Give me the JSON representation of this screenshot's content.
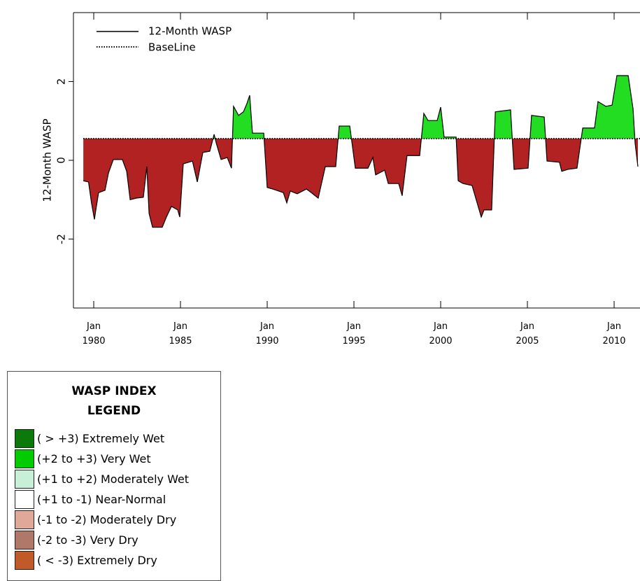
{
  "chart_data": {
    "type": "area-baseline",
    "y_label": "12-Month WASP",
    "series": [
      {
        "name": "12-Month WASP",
        "color": "#000000",
        "x": [
          1979.4,
          1979.7,
          1979.87,
          1980.04,
          1980.12,
          1980.28,
          1980.65,
          1980.85,
          1981.13,
          1981.65,
          1981.9,
          1982.1,
          1982.46,
          1982.86,
          1983.06,
          1983.19,
          1983.39,
          1983.95,
          1984.19,
          1984.48,
          1984.84,
          1984.96,
          1985.16,
          1985.69,
          1985.97,
          1986.29,
          1986.69,
          1986.94,
          1987.06,
          1987.34,
          1987.7,
          1987.94,
          1988.06,
          1988.35,
          1988.63,
          1988.83,
          1988.99,
          1989.15,
          1989.8,
          1990.0,
          1990.32,
          1990.93,
          1991.13,
          1991.33,
          1991.73,
          1992.26,
          1992.54,
          1992.94,
          1993.15,
          1993.35,
          1993.95,
          1994.15,
          1994.76,
          1995.08,
          1995.81,
          1996.09,
          1996.25,
          1996.77,
          1996.98,
          1997.58,
          1997.78,
          1998.06,
          1998.79,
          1999.03,
          1999.27,
          1999.8,
          2000.0,
          2000.2,
          2000.89,
          2001.01,
          2001.29,
          2001.81,
          2002.1,
          2002.34,
          2002.5,
          2002.94,
          2003.15,
          2004.03,
          2004.23,
          2005.04,
          2005.24,
          2005.97,
          2006.13,
          2006.85,
          2006.98,
          2007.34,
          2007.86,
          2008.19,
          2008.87,
          2009.07,
          2009.52,
          2009.88,
          2010.16,
          2010.81,
          2011.09,
          2011.21,
          2011.37
        ],
        "values": [
          -0.52,
          -0.55,
          -1.08,
          -1.5,
          -1.26,
          -0.82,
          -0.76,
          -0.32,
          0.02,
          0.02,
          -0.28,
          -1.0,
          -0.96,
          -0.94,
          -0.16,
          -1.35,
          -1.7,
          -1.7,
          -1.44,
          -1.17,
          -1.26,
          -1.44,
          -0.09,
          -0.02,
          -0.55,
          0.2,
          0.23,
          0.66,
          0.44,
          0.02,
          0.07,
          -0.2,
          1.37,
          1.14,
          1.23,
          1.44,
          1.65,
          0.69,
          0.69,
          -0.69,
          -0.73,
          -0.82,
          -1.08,
          -0.78,
          -0.85,
          -0.73,
          -0.82,
          -0.96,
          -0.55,
          -0.16,
          -0.16,
          0.87,
          0.87,
          -0.2,
          -0.2,
          0.07,
          -0.37,
          -0.25,
          -0.59,
          -0.59,
          -0.9,
          0.12,
          0.12,
          1.19,
          1.01,
          1.01,
          1.35,
          0.59,
          0.59,
          -0.52,
          -0.59,
          -0.64,
          -1.08,
          -1.44,
          -1.26,
          -1.26,
          1.23,
          1.28,
          -0.23,
          -0.2,
          1.14,
          1.1,
          -0.02,
          -0.05,
          -0.28,
          -0.23,
          -0.2,
          0.82,
          0.82,
          1.49,
          1.37,
          1.4,
          2.15,
          2.15,
          1.31,
          0.43,
          -0.16
        ]
      }
    ],
    "baseline": {
      "name": "BaseLine",
      "value": 0.55
    },
    "above_color": "#22dd22",
    "below_color": "#b22222",
    "xlim": [
      1978.83,
      2011.5
    ],
    "ylim": [
      -3.75,
      3.75
    ],
    "xticks": [
      {
        "value": 1980,
        "label": "Jan\n1980"
      },
      {
        "value": 1985,
        "label": "Jan\n1985"
      },
      {
        "value": 1990,
        "label": "Jan\n1990"
      },
      {
        "value": 1995,
        "label": "Jan\n1995"
      },
      {
        "value": 2000,
        "label": "Jan\n2000"
      },
      {
        "value": 2005,
        "label": "Jan\n2005"
      },
      {
        "value": 2010,
        "label": "Jan\n2010"
      }
    ],
    "yticks": [
      -2,
      0,
      2
    ]
  },
  "wasp_legend": {
    "title": "WASP INDEX\nLEGEND",
    "items": [
      {
        "label": "( > +3) Extremely Wet",
        "color": "#0b7a0b"
      },
      {
        "label": "(+2 to +3) Very Wet",
        "color": "#00cc00"
      },
      {
        "label": "(+1 to +2) Moderately Wet",
        "color": "#c8f0d8"
      },
      {
        "label": "(+1 to -1) Near-Normal",
        "color": "#ffffff"
      },
      {
        "label": "(-1 to -2) Moderately Dry",
        "color": "#e0a898"
      },
      {
        "label": "(-2 to -3) Very Dry",
        "color": "#b07868"
      },
      {
        "label": "( < -3) Extremely Dry",
        "color": "#c05a28"
      }
    ]
  }
}
